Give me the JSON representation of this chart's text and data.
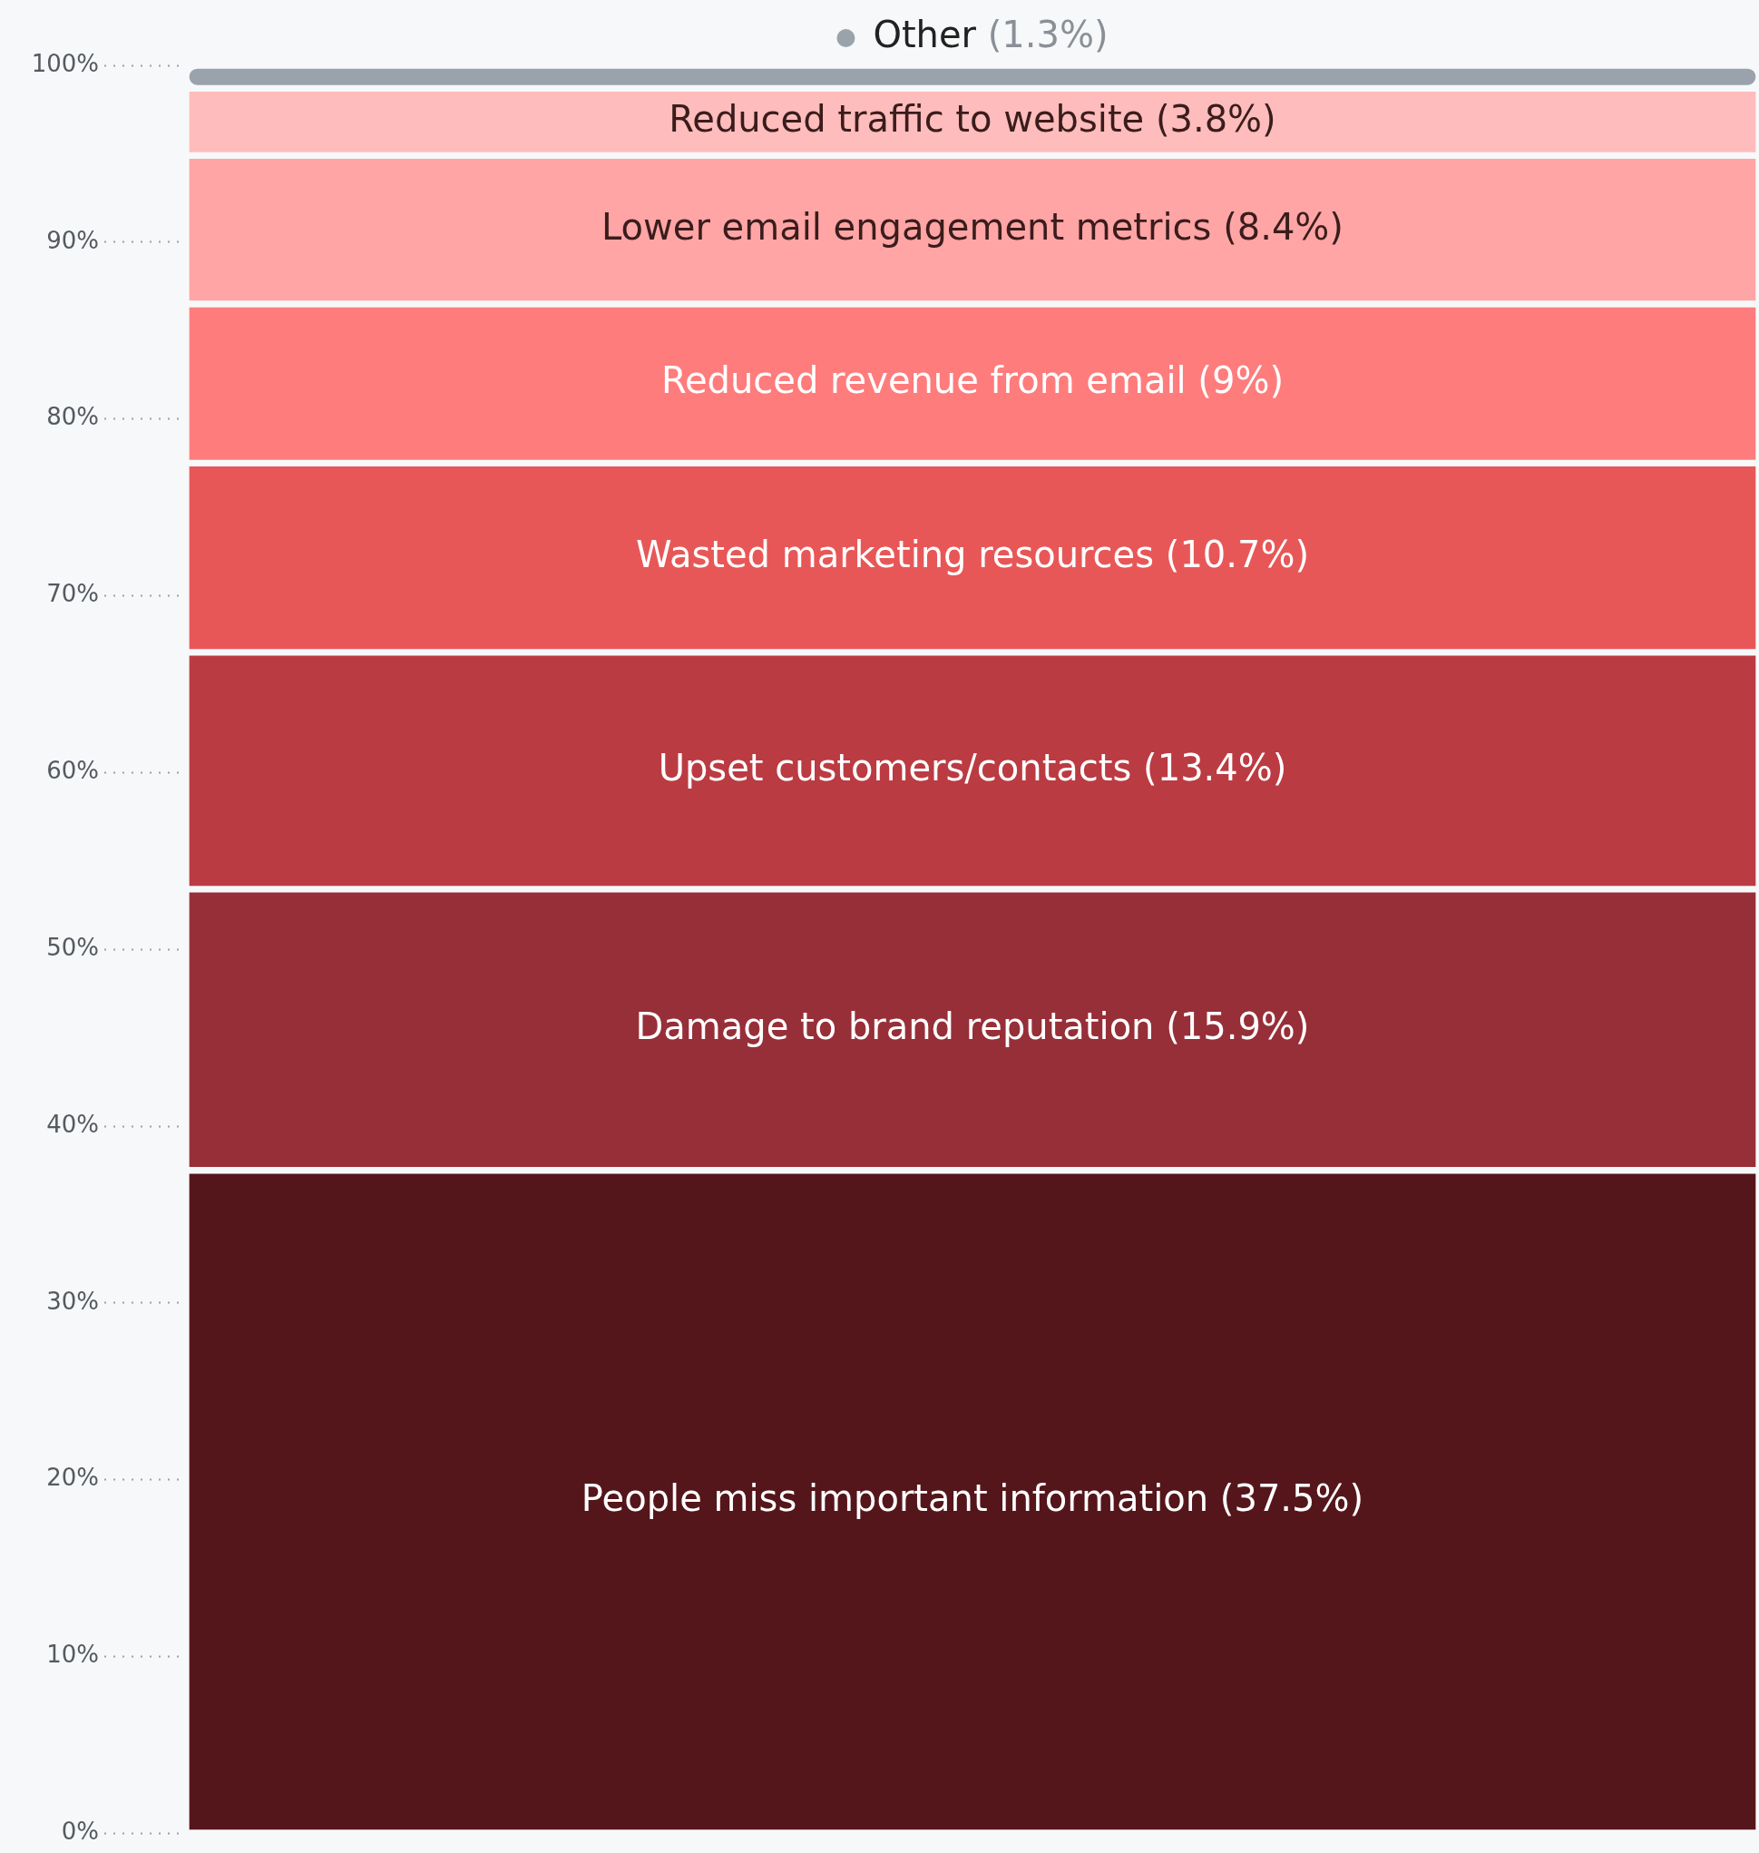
{
  "chart_data": {
    "type": "bar",
    "stacked": true,
    "categories": [
      null
    ],
    "ylim": [
      0,
      100
    ],
    "yticks": [
      {
        "value": 0,
        "label": "0%"
      },
      {
        "value": 10,
        "label": "10%"
      },
      {
        "value": 20,
        "label": "20%"
      },
      {
        "value": 30,
        "label": "30%"
      },
      {
        "value": 40,
        "label": "40%"
      },
      {
        "value": 50,
        "label": "50%"
      },
      {
        "value": 60,
        "label": "60%"
      },
      {
        "value": 70,
        "label": "70%"
      },
      {
        "value": 80,
        "label": "80%"
      },
      {
        "value": 90,
        "label": "90%"
      },
      {
        "value": 100,
        "label": "100%"
      }
    ],
    "series": [
      {
        "name": "People miss important information",
        "color": "#55161b",
        "values": [
          37.5
        ],
        "value_labels": [
          "(37.5%)"
        ]
      },
      {
        "name": "Damage to brand reputation",
        "color": "#972f38",
        "values": [
          15.9
        ],
        "value_labels": [
          "(15.9%)"
        ]
      },
      {
        "name": "Upset customers/contacts",
        "color": "#bb3b42",
        "values": [
          13.4
        ],
        "value_labels": [
          "(13.4%)"
        ]
      },
      {
        "name": "Wasted marketing resources",
        "color": "#e85757",
        "values": [
          10.7
        ],
        "value_labels": [
          "(10.7%)"
        ]
      },
      {
        "name": "Reduced revenue from email",
        "color": "#ff7c7c",
        "values": [
          9
        ],
        "value_labels": [
          "(9%)"
        ]
      },
      {
        "name": "Lower email engagement metrics",
        "color": "#ffa5a5",
        "values": [
          8.4
        ],
        "value_labels": [
          "(8.4%)"
        ]
      },
      {
        "name": "Reduced traffic to website",
        "color": "#ffbcbc",
        "values": [
          3.8
        ],
        "value_labels": [
          "(3.8%)"
        ]
      },
      {
        "name": "Other",
        "color": "#9aa3ab",
        "values": [
          1.3
        ],
        "value_labels": [
          "(1.3%)"
        ]
      }
    ]
  }
}
